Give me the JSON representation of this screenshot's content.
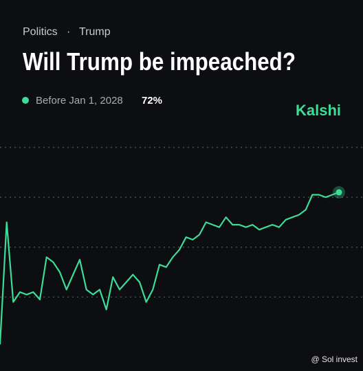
{
  "chart_data": {
    "type": "line",
    "breadcrumb": [
      "Politics",
      "·",
      "Trump"
    ],
    "title": "Will Trump be impeached?",
    "brand": "Kalshi",
    "watermark": "@ Sol invest",
    "series": [
      {
        "name": "Before Jan 1, 2028",
        "color": "#3ddc97",
        "values": [
          11,
          60,
          28,
          32,
          31,
          32,
          29,
          46,
          44,
          40,
          33,
          39,
          45,
          33,
          31,
          33,
          25,
          38,
          33,
          36,
          39,
          36,
          28,
          33,
          43,
          42,
          46,
          49,
          54,
          53,
          55,
          60,
          59,
          58,
          62,
          59,
          59,
          58,
          59,
          57,
          58,
          59,
          58,
          61,
          62,
          63,
          65,
          71,
          71,
          70,
          71,
          72
        ]
      }
    ],
    "current": {
      "value": 72,
      "label": "72%"
    },
    "ylim": [
      10,
      94
    ],
    "yticks": [
      30,
      50,
      70,
      90
    ],
    "grid": true
  }
}
